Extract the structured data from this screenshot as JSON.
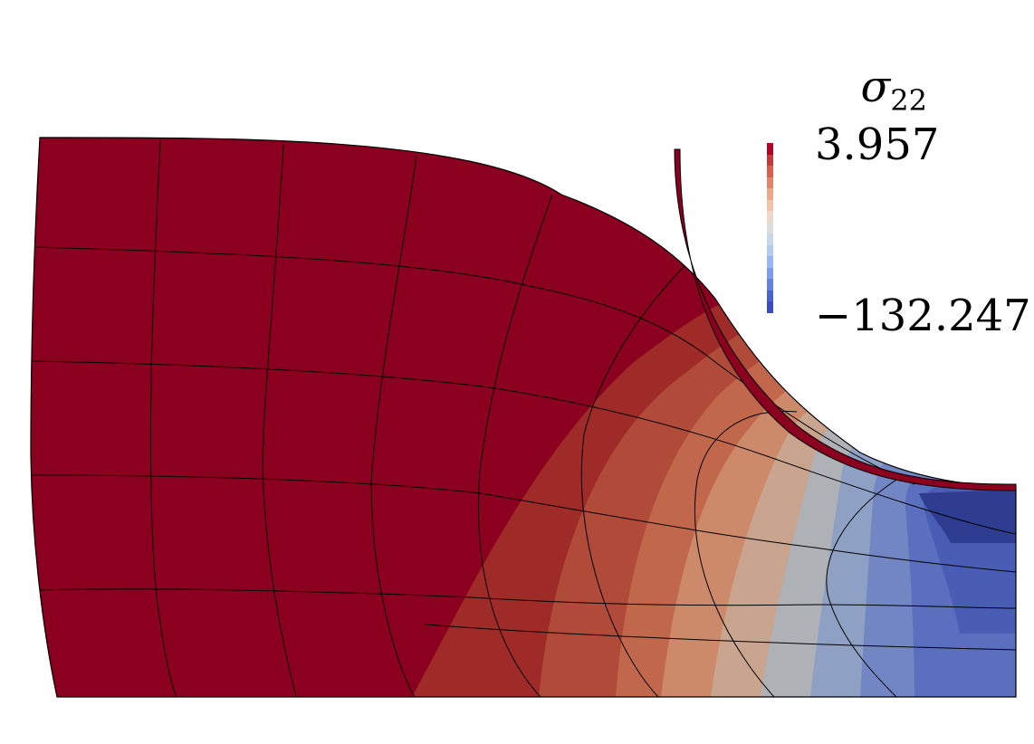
{
  "legend": {
    "field_symbol": "σ",
    "field_subscript": "22",
    "max_label": "3.957",
    "min_label": "−132.247",
    "max_value": 3.957,
    "min_value": -132.247,
    "bands": [
      "#b40426",
      "#c5393b",
      "#d6604d",
      "#e4846a",
      "#eda789",
      "#f2c4ac",
      "#eed8cb",
      "#dddddd",
      "#cad6ea",
      "#b5cbf2",
      "#9ab6f5",
      "#7f9cef",
      "#6482e2",
      "#4b63cf",
      "#3b4cc0"
    ]
  },
  "colors": {
    "top_band": "#8b001e",
    "band_2": "#9e2b27",
    "band_3": "#b04b39",
    "band_4": "#c1684c",
    "band_5": "#cc8a6a",
    "band_6": "#c9a48e",
    "band_7": "#aeb1b6",
    "band_8": "#8ea0c4",
    "band_9": "#7186c2",
    "band_10": "#5a6fbd",
    "band_11": "#4a5db5",
    "band_12": "#2e3d90",
    "indenter": "#8b001e",
    "mesh_lines": "#000000"
  }
}
